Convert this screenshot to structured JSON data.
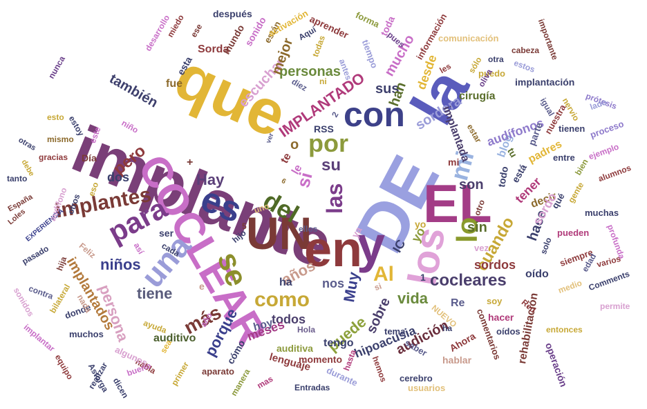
{
  "words": {
    "w1": "implante",
    "w2": "que",
    "w3": "DE",
    "w4": "la",
    "w5": "COCLEAR",
    "w6": "EL",
    "w7": "UN",
    "w8": "en",
    "w9": "y",
    "w10": "los",
    "w11": "es",
    "w12": "con",
    "w13": "una",
    "w14": "se",
    "w15": "para",
    "w16": "del",
    "w17": "por",
    "w18": "las",
    "w19": "implantes",
    "w20": "mi",
    "w21": "lo",
    "w22": "como",
    "w23": "IMPLANTADO",
    "w24": "cocleares",
    "w25": "más",
    "w26": "Hay",
    "w27": "también",
    "w28": "pero",
    "w29": "si",
    "w30": "su",
    "w31": "personas",
    "w32": "escuchar",
    "w33": "sus",
    "w34": "porque",
    "w35": "tiene",
    "w36": "niños",
    "w37": "implantados",
    "w38": "Al",
    "w39": "cuando",
    "w40": "sordera",
    "w41": "implantada",
    "w42": "audición",
    "w43": "todos",
    "w44": "puede",
    "w45": "sobre",
    "w46": "años",
    "w47": "Muy",
    "w48": "vida",
    "w49": "son",
    "w50": "sin",
    "w51": "persona",
    "w52": "hipoacusia",
    "w53": "mejor",
    "w54": "Sorda",
    "w55": "fue",
    "w56": "han",
    "w57": "desde",
    "w58": "mucho",
    "w59": "dos",
    "w60": "nos",
    "w61": "ha",
    "w62": "hace",
    "w63": "sordos",
    "w64": "tener",
    "w65": "decir",
    "w66": "sordo",
    "w67": "blog",
    "w68": "cirugía",
    "w69": "audífonos",
    "w70": "parte",
    "w71": "padres",
    "w72": "rehabilitación",
    "w73": "operación",
    "w74": "oído",
    "w75": "hablar",
    "w76": "lenguaje",
    "w77": "auditivo",
    "w78": "auditiva",
    "w79": "momento",
    "w80": "tengo",
    "w81": "meses",
    "w82": "hoy",
    "w83": "cómo",
    "w84": "después",
    "w85": "mundo",
    "w86": "sonido",
    "w87": "están",
    "w88": "activación",
    "w89": "aprender",
    "w90": "forma",
    "w91": "toda",
    "w92": "pues",
    "w93": "información",
    "w94": "comunicación",
    "w95": "importante",
    "w96": "cabeza",
    "w97": "otra",
    "w98": "puedo",
    "w99": "estos",
    "w100": "implantación",
    "w101": "prótesis",
    "w102": "lado",
    "w103": "igual",
    "w104": "nervio",
    "w105": "tienen",
    "w106": "proceso",
    "w107": "entre",
    "w108": "ejemplo",
    "w109": "bien",
    "w110": "alumnos",
    "w111": "muchas",
    "w112": "gente",
    "w113": "qué",
    "w114": "pueden",
    "w115": "profunda",
    "w116": "siempre",
    "w117": "varios",
    "w118": "edad",
    "w119": "Comments",
    "w120": "medio",
    "w121": "permite",
    "w122": "entonces",
    "w123": "Red",
    "w124": "soy",
    "w125": "hacer",
    "w126": "oídos",
    "w127": "Ahora",
    "w128": "comentarios",
    "w129": "saber",
    "w130": "cerebro",
    "w131": "usuarios",
    "w132": "Entradas",
    "w133": "durante",
    "w134": "hasta",
    "w135": "hemos",
    "w136": "tema",
    "w137": "NUEVO",
    "w138": "Hola",
    "w139": "manera",
    "w140": "mas",
    "w141": "aparato",
    "w142": "primer",
    "w143": "habla",
    "w144": "Astorga",
    "w145": "realizar",
    "w146": "dicen",
    "w147": "bueno",
    "w148": "algunos",
    "w149": "sea",
    "w150": "ayuda",
    "w151": "año",
    "w152": "muchos",
    "w153": "donde",
    "w154": "nada",
    "w155": "bilateral",
    "w156": "contra",
    "w157": "equipo",
    "w158": "implantar",
    "w159": "sonidos",
    "w160": "hija",
    "w161": "pasado",
    "w162": "Feliz",
    "w163": "así",
    "w164": "cada",
    "w165": "ser",
    "w166": "hijo",
    "w167": "ellos",
    "w168": "uno",
    "w169": "España",
    "w170": "Loles",
    "w171": "EXPERIENCIA",
    "w172": "tanto",
    "w173": "otros",
    "w174": "audífono",
    "w175": "eso",
    "w176": "gracias",
    "w177": "Día",
    "w178": "este",
    "w179": "niño",
    "w180": "estoy",
    "w181": "mismo",
    "w182": "otras",
    "w183": "debe",
    "w184": "esto",
    "w185": "nunca",
    "w186": "desarrollo",
    "w187": "miedo",
    "w188": "ese",
    "w189": "esta",
    "w190": "RSS",
    "w191": "Re",
    "w192": "vez",
    "w193": "yo",
    "w194": "IC",
    "w195": "le",
    "w196": "te",
    "w197": "o",
    "w198": "ya",
    "w199": "ni",
    "w200": "diez",
    "w201": "Aquí",
    "w202": "antes",
    "w203": "tiempo",
    "w204": "todas",
    "w205": "sólo",
    "w206": "oliva",
    "w207": "solo",
    "w208": "otro",
    "w209": "estar",
    "w210": "les",
    "w211": "tu",
    "w212": "nuestra",
    "w213": "está",
    "w214": "todo",
    "w215": "ver",
    "w216": "1",
    "w217": "5",
    "w218": "2",
    "w219": "6",
    "w220": "+",
    "w221": "e",
    "w222": "si",
    "w223": "mi",
    "w224": "yo",
    "w225": "ha"
  }
}
